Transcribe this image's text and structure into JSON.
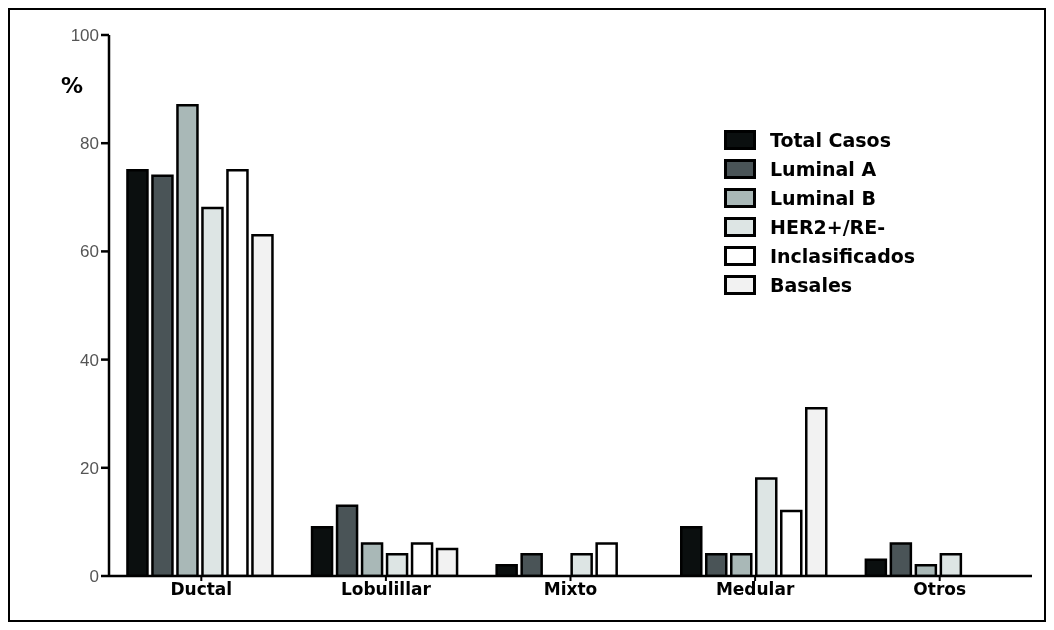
{
  "chart_data": {
    "type": "bar",
    "ylabel": "%",
    "categories": [
      "Ductal",
      "Lobulillar",
      "Mixto",
      "Medular",
      "Otros"
    ],
    "series": [
      {
        "name": "Total Casos",
        "color": "#0b0f0f",
        "values": [
          75,
          9,
          2,
          9,
          3
        ]
      },
      {
        "name": "Luminal A",
        "color": "#4a5457",
        "values": [
          74,
          13,
          4,
          4,
          6
        ]
      },
      {
        "name": "Luminal B",
        "color": "#a9b8b7",
        "values": [
          87,
          6,
          0,
          4,
          2
        ]
      },
      {
        "name": "HER2+/RE-",
        "color": "#dde5e4",
        "values": [
          68,
          4,
          4,
          18,
          4
        ]
      },
      {
        "name": "Inclasificados",
        "color": "#ffffff",
        "values": [
          75,
          6,
          6,
          12,
          0
        ]
      },
      {
        "name": "Basales",
        "color": "#f2f2f2",
        "values": [
          63,
          5,
          0,
          31,
          0
        ]
      }
    ],
    "ylim": [
      0,
      100
    ],
    "yticks": [
      0,
      20,
      40,
      60,
      80,
      100
    ],
    "grid": false,
    "legend": "top right"
  }
}
